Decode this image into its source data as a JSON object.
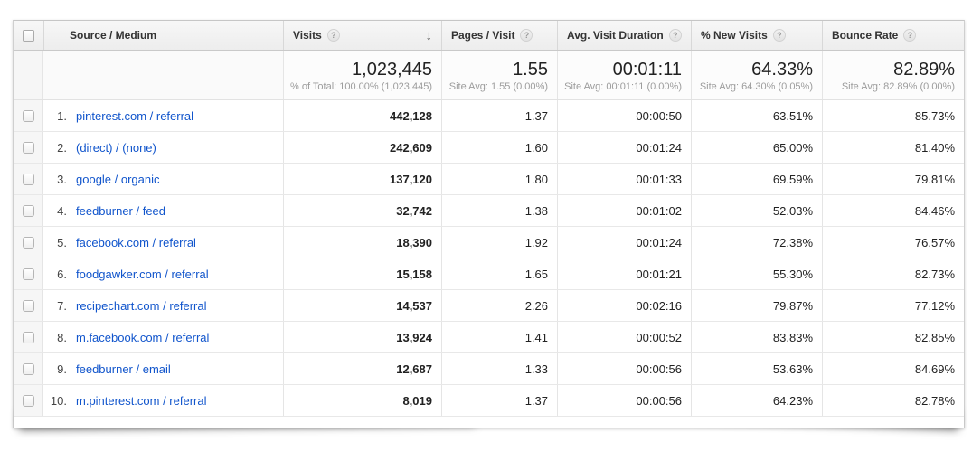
{
  "table": {
    "columns": {
      "source": {
        "label": "Source / Medium"
      },
      "visits": {
        "label": "Visits"
      },
      "pages": {
        "label": "Pages / Visit"
      },
      "duration": {
        "label": "Avg. Visit Duration"
      },
      "new_visits": {
        "label": "% New Visits"
      },
      "bounce": {
        "label": "Bounce Rate"
      }
    },
    "help_glyph": "?",
    "sort_glyph": "↓",
    "summary": {
      "visits": {
        "value": "1,023,445",
        "sub": "% of Total: 100.00% (1,023,445)"
      },
      "pages": {
        "value": "1.55",
        "sub": "Site Avg: 1.55 (0.00%)"
      },
      "duration": {
        "value": "00:01:11",
        "sub": "Site Avg: 00:01:11 (0.00%)"
      },
      "new_visits": {
        "value": "64.33%",
        "sub": "Site Avg: 64.30% (0.05%)"
      },
      "bounce": {
        "value": "82.89%",
        "sub": "Site Avg: 82.89% (0.00%)"
      }
    },
    "rows": [
      {
        "rank": "1.",
        "source": "pinterest.com / referral",
        "visits": "442,128",
        "pages": "1.37",
        "duration": "00:00:50",
        "new_visits": "63.51%",
        "bounce": "85.73%"
      },
      {
        "rank": "2.",
        "source": "(direct) / (none)",
        "visits": "242,609",
        "pages": "1.60",
        "duration": "00:01:24",
        "new_visits": "65.00%",
        "bounce": "81.40%"
      },
      {
        "rank": "3.",
        "source": "google / organic",
        "visits": "137,120",
        "pages": "1.80",
        "duration": "00:01:33",
        "new_visits": "69.59%",
        "bounce": "79.81%"
      },
      {
        "rank": "4.",
        "source": "feedburner / feed",
        "visits": "32,742",
        "pages": "1.38",
        "duration": "00:01:02",
        "new_visits": "52.03%",
        "bounce": "84.46%"
      },
      {
        "rank": "5.",
        "source": "facebook.com / referral",
        "visits": "18,390",
        "pages": "1.92",
        "duration": "00:01:24",
        "new_visits": "72.38%",
        "bounce": "76.57%"
      },
      {
        "rank": "6.",
        "source": "foodgawker.com / referral",
        "visits": "15,158",
        "pages": "1.65",
        "duration": "00:01:21",
        "new_visits": "55.30%",
        "bounce": "82.73%"
      },
      {
        "rank": "7.",
        "source": "recipechart.com / referral",
        "visits": "14,537",
        "pages": "2.26",
        "duration": "00:02:16",
        "new_visits": "79.87%",
        "bounce": "77.12%"
      },
      {
        "rank": "8.",
        "source": "m.facebook.com / referral",
        "visits": "13,924",
        "pages": "1.41",
        "duration": "00:00:52",
        "new_visits": "83.83%",
        "bounce": "82.85%"
      },
      {
        "rank": "9.",
        "source": "feedburner / email",
        "visits": "12,687",
        "pages": "1.33",
        "duration": "00:00:56",
        "new_visits": "53.63%",
        "bounce": "84.69%"
      },
      {
        "rank": "10.",
        "source": "m.pinterest.com / referral",
        "visits": "8,019",
        "pages": "1.37",
        "duration": "00:00:56",
        "new_visits": "64.23%",
        "bounce": "82.78%"
      }
    ],
    "colors": {
      "link": "#1155cc",
      "header_text": "#333333",
      "subtext": "#9c9c9c"
    }
  }
}
